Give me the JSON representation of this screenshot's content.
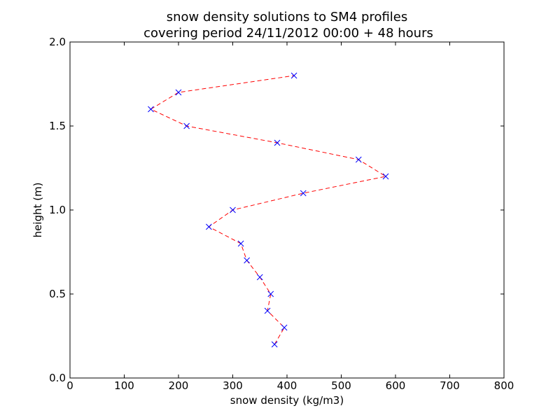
{
  "chart_data": {
    "type": "line",
    "title": [
      "snow density solutions to SM4 profiles",
      "covering period 24/11/2012 00:00 + 48 hours"
    ],
    "xlabel": "snow density (kg/m3)",
    "ylabel": "height (m)",
    "xlim": [
      0,
      800
    ],
    "ylim": [
      0.0,
      2.0
    ],
    "x_ticks": [
      "0",
      "100",
      "200",
      "300",
      "400",
      "500",
      "600",
      "700",
      "800"
    ],
    "y_ticks": [
      "0.0",
      "0.5",
      "1.0",
      "1.5",
      "2.0"
    ],
    "grid": false,
    "legend": "none",
    "series": [
      {
        "x": [
          377,
          395,
          364,
          370,
          350,
          326,
          315,
          256,
          300,
          430,
          582,
          532,
          382,
          215,
          149,
          200,
          413
        ],
        "y": [
          0.2,
          0.3,
          0.4,
          0.5,
          0.6,
          0.7,
          0.8,
          0.9,
          1.0,
          1.1,
          1.2,
          1.3,
          1.4,
          1.5,
          1.6,
          1.7,
          1.8
        ],
        "line_color": "#ff0000",
        "line_style": "dashed",
        "marker": "x",
        "marker_color": "#0000ff"
      }
    ]
  }
}
